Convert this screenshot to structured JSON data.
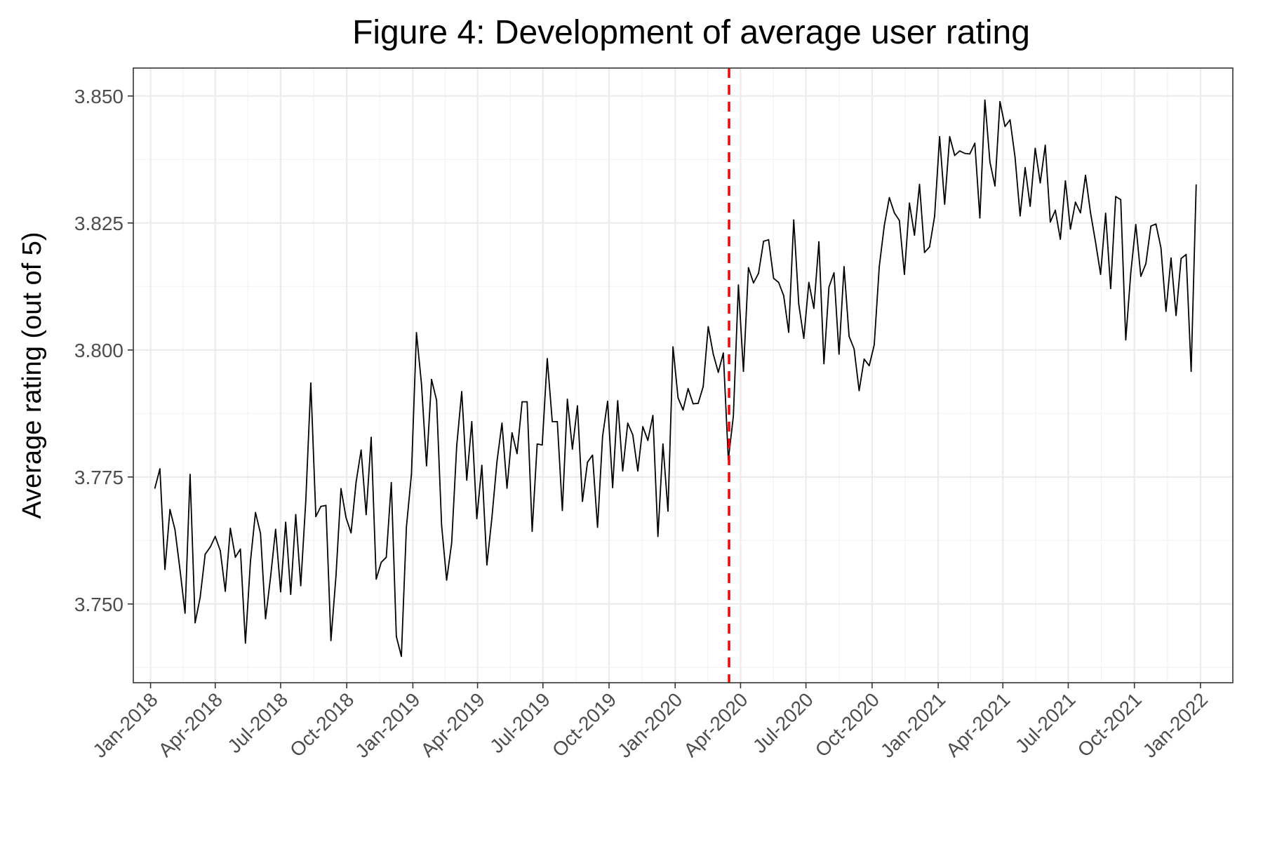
{
  "chart_data": {
    "type": "line",
    "title": "Figure 4: Development of average user rating",
    "xlabel": "",
    "ylabel": "Average rating (out of 5)",
    "x_axis": "date",
    "xlim": [
      "2017-12-08",
      "2022-02-15"
    ],
    "ylim": [
      3.7345,
      3.8555
    ],
    "x_ticks": [
      {
        "date": "2018-01-01",
        "label": "Jan-2018"
      },
      {
        "date": "2018-04-01",
        "label": "Apr-2018"
      },
      {
        "date": "2018-07-01",
        "label": "Jul-2018"
      },
      {
        "date": "2018-10-01",
        "label": "Oct-2018"
      },
      {
        "date": "2019-01-01",
        "label": "Jan-2019"
      },
      {
        "date": "2019-04-01",
        "label": "Apr-2019"
      },
      {
        "date": "2019-07-01",
        "label": "Jul-2019"
      },
      {
        "date": "2019-10-01",
        "label": "Oct-2019"
      },
      {
        "date": "2020-01-01",
        "label": "Jan-2020"
      },
      {
        "date": "2020-04-01",
        "label": "Apr-2020"
      },
      {
        "date": "2020-07-01",
        "label": "Jul-2020"
      },
      {
        "date": "2020-10-01",
        "label": "Oct-2020"
      },
      {
        "date": "2021-01-01",
        "label": "Jan-2021"
      },
      {
        "date": "2021-04-01",
        "label": "Apr-2021"
      },
      {
        "date": "2021-07-01",
        "label": "Jul-2021"
      },
      {
        "date": "2021-10-01",
        "label": "Oct-2021"
      },
      {
        "date": "2022-01-01",
        "label": "Jan-2022"
      }
    ],
    "y_ticks": [
      {
        "value": 3.75,
        "label": "3.750"
      },
      {
        "value": 3.775,
        "label": "3.775"
      },
      {
        "value": 3.8,
        "label": "3.800"
      },
      {
        "value": 3.825,
        "label": "3.825"
      },
      {
        "value": 3.85,
        "label": "3.850"
      }
    ],
    "grid": true,
    "vertical_reference_line": {
      "date": "2020-03-16",
      "color": "#ff0000",
      "style": "dashed"
    },
    "series": [
      {
        "color": "#000000",
        "points": [
          [
            "2018-01-07",
            3.7728
          ],
          [
            "2018-01-14",
            3.7766
          ],
          [
            "2018-01-21",
            3.7568
          ],
          [
            "2018-01-28",
            3.7686
          ],
          [
            "2018-02-04",
            3.7646
          ],
          [
            "2018-02-11",
            3.7567
          ],
          [
            "2018-02-18",
            3.7482
          ],
          [
            "2018-02-25",
            3.7755
          ],
          [
            "2018-03-04",
            3.7463
          ],
          [
            "2018-03-11",
            3.7513
          ],
          [
            "2018-03-18",
            3.7598
          ],
          [
            "2018-03-25",
            3.7612
          ],
          [
            "2018-04-01",
            3.7633
          ],
          [
            "2018-04-08",
            3.7605
          ],
          [
            "2018-04-15",
            3.7525
          ],
          [
            "2018-04-22",
            3.7649
          ],
          [
            "2018-04-29",
            3.7592
          ],
          [
            "2018-05-06",
            3.7608
          ],
          [
            "2018-05-13",
            3.7423
          ],
          [
            "2018-05-20",
            3.7584
          ],
          [
            "2018-05-27",
            3.768
          ],
          [
            "2018-06-03",
            3.7639
          ],
          [
            "2018-06-10",
            3.7471
          ],
          [
            "2018-06-17",
            3.7553
          ],
          [
            "2018-06-24",
            3.7647
          ],
          [
            "2018-07-01",
            3.7524
          ],
          [
            "2018-07-08",
            3.7661
          ],
          [
            "2018-07-15",
            3.7519
          ],
          [
            "2018-07-22",
            3.7676
          ],
          [
            "2018-07-29",
            3.7536
          ],
          [
            "2018-08-05",
            3.7703
          ],
          [
            "2018-08-12",
            3.7935
          ],
          [
            "2018-08-19",
            3.7672
          ],
          [
            "2018-08-26",
            3.7692
          ],
          [
            "2018-09-02",
            3.7694
          ],
          [
            "2018-09-09",
            3.7428
          ],
          [
            "2018-09-16",
            3.7555
          ],
          [
            "2018-09-23",
            3.7727
          ],
          [
            "2018-09-30",
            3.767
          ],
          [
            "2018-10-07",
            3.764
          ],
          [
            "2018-10-14",
            3.774
          ],
          [
            "2018-10-21",
            3.7803
          ],
          [
            "2018-10-28",
            3.7676
          ],
          [
            "2018-11-04",
            3.7828
          ],
          [
            "2018-11-11",
            3.7549
          ],
          [
            "2018-11-18",
            3.7582
          ],
          [
            "2018-11-25",
            3.7592
          ],
          [
            "2018-12-02",
            3.7739
          ],
          [
            "2018-12-09",
            3.7436
          ],
          [
            "2018-12-16",
            3.7397
          ],
          [
            "2018-12-23",
            3.7651
          ],
          [
            "2018-12-30",
            3.7755
          ],
          [
            "2019-01-06",
            3.8034
          ],
          [
            "2019-01-13",
            3.7933
          ],
          [
            "2019-01-20",
            3.7772
          ],
          [
            "2019-01-27",
            3.7942
          ],
          [
            "2019-02-03",
            3.7901
          ],
          [
            "2019-02-10",
            3.7655
          ],
          [
            "2019-02-17",
            3.7547
          ],
          [
            "2019-02-24",
            3.762
          ],
          [
            "2019-03-03",
            3.7811
          ],
          [
            "2019-03-10",
            3.7918
          ],
          [
            "2019-03-17",
            3.7744
          ],
          [
            "2019-03-24",
            3.7859
          ],
          [
            "2019-03-31",
            3.7668
          ],
          [
            "2019-04-07",
            3.7773
          ],
          [
            "2019-04-14",
            3.7577
          ],
          [
            "2019-04-21",
            3.767
          ],
          [
            "2019-04-28",
            3.778
          ],
          [
            "2019-05-05",
            3.7856
          ],
          [
            "2019-05-12",
            3.7728
          ],
          [
            "2019-05-19",
            3.7837
          ],
          [
            "2019-05-26",
            3.7796
          ],
          [
            "2019-06-02",
            3.7898
          ],
          [
            "2019-06-09",
            3.7898
          ],
          [
            "2019-06-16",
            3.7643
          ],
          [
            "2019-06-23",
            3.7815
          ],
          [
            "2019-06-30",
            3.7813
          ],
          [
            "2019-07-07",
            3.7983
          ],
          [
            "2019-07-14",
            3.7859
          ],
          [
            "2019-07-21",
            3.7859
          ],
          [
            "2019-07-28",
            3.7684
          ],
          [
            "2019-08-04",
            3.7903
          ],
          [
            "2019-08-11",
            3.7805
          ],
          [
            "2019-08-18",
            3.789
          ],
          [
            "2019-08-25",
            3.7702
          ],
          [
            "2019-09-01",
            3.7779
          ],
          [
            "2019-09-08",
            3.7793
          ],
          [
            "2019-09-15",
            3.7651
          ],
          [
            "2019-09-22",
            3.783
          ],
          [
            "2019-09-29",
            3.7899
          ],
          [
            "2019-10-06",
            3.7729
          ],
          [
            "2019-10-13",
            3.79
          ],
          [
            "2019-10-20",
            3.7762
          ],
          [
            "2019-10-27",
            3.7856
          ],
          [
            "2019-11-03",
            3.7833
          ],
          [
            "2019-11-10",
            3.7762
          ],
          [
            "2019-11-17",
            3.7849
          ],
          [
            "2019-11-24",
            3.7822
          ],
          [
            "2019-12-01",
            3.7871
          ],
          [
            "2019-12-08",
            3.7633
          ],
          [
            "2019-12-15",
            3.7815
          ],
          [
            "2019-12-22",
            3.7683
          ],
          [
            "2019-12-29",
            3.8006
          ],
          [
            "2020-01-05",
            3.7906
          ],
          [
            "2020-01-12",
            3.7882
          ],
          [
            "2020-01-19",
            3.7924
          ],
          [
            "2020-01-26",
            3.7894
          ],
          [
            "2020-02-02",
            3.7895
          ],
          [
            "2020-02-09",
            3.7928
          ],
          [
            "2020-02-16",
            3.8046
          ],
          [
            "2020-02-23",
            3.7992
          ],
          [
            "2020-03-01",
            3.7956
          ],
          [
            "2020-03-08",
            3.7994
          ],
          [
            "2020-03-15",
            3.7784
          ],
          [
            "2020-03-22",
            3.787
          ],
          [
            "2020-03-29",
            3.8128
          ],
          [
            "2020-04-05",
            3.7958
          ],
          [
            "2020-04-12",
            3.8162
          ],
          [
            "2020-04-19",
            3.8132
          ],
          [
            "2020-04-26",
            3.8151
          ],
          [
            "2020-05-03",
            3.8214
          ],
          [
            "2020-05-10",
            3.8217
          ],
          [
            "2020-05-17",
            3.8141
          ],
          [
            "2020-05-24",
            3.8133
          ],
          [
            "2020-05-31",
            3.8107
          ],
          [
            "2020-06-07",
            3.8035
          ],
          [
            "2020-06-14",
            3.8256
          ],
          [
            "2020-06-21",
            3.809
          ],
          [
            "2020-06-28",
            3.8023
          ],
          [
            "2020-07-05",
            3.8133
          ],
          [
            "2020-07-12",
            3.8082
          ],
          [
            "2020-07-19",
            3.8213
          ],
          [
            "2020-07-26",
            3.7973
          ],
          [
            "2020-08-02",
            3.8124
          ],
          [
            "2020-08-09",
            3.8152
          ],
          [
            "2020-08-16",
            3.7992
          ],
          [
            "2020-08-23",
            3.8164
          ],
          [
            "2020-08-30",
            3.8027
          ],
          [
            "2020-09-06",
            3.8002
          ],
          [
            "2020-09-13",
            3.792
          ],
          [
            "2020-09-20",
            3.7982
          ],
          [
            "2020-09-27",
            3.7969
          ],
          [
            "2020-10-04",
            3.801
          ],
          [
            "2020-10-11",
            3.8164
          ],
          [
            "2020-10-18",
            3.8245
          ],
          [
            "2020-10-25",
            3.83
          ],
          [
            "2020-11-01",
            3.827
          ],
          [
            "2020-11-08",
            3.8255
          ],
          [
            "2020-11-15",
            3.8149
          ],
          [
            "2020-11-22",
            3.8289
          ],
          [
            "2020-11-29",
            3.8226
          ],
          [
            "2020-12-06",
            3.8326
          ],
          [
            "2020-12-13",
            3.8192
          ],
          [
            "2020-12-20",
            3.8203
          ],
          [
            "2020-12-27",
            3.8263
          ],
          [
            "2021-01-03",
            3.842
          ],
          [
            "2021-01-10",
            3.8287
          ],
          [
            "2021-01-17",
            3.842
          ],
          [
            "2021-01-24",
            3.8383
          ],
          [
            "2021-01-31",
            3.8392
          ],
          [
            "2021-02-07",
            3.8387
          ],
          [
            "2021-02-14",
            3.8386
          ],
          [
            "2021-02-21",
            3.8407
          ],
          [
            "2021-02-28",
            3.826
          ],
          [
            "2021-03-07",
            3.8492
          ],
          [
            "2021-03-14",
            3.837
          ],
          [
            "2021-03-21",
            3.8323
          ],
          [
            "2021-03-28",
            3.8489
          ],
          [
            "2021-04-04",
            3.844
          ],
          [
            "2021-04-11",
            3.8453
          ],
          [
            "2021-04-18",
            3.8379
          ],
          [
            "2021-04-25",
            3.8264
          ],
          [
            "2021-05-02",
            3.8359
          ],
          [
            "2021-05-09",
            3.8283
          ],
          [
            "2021-05-16",
            3.8397
          ],
          [
            "2021-05-23",
            3.8329
          ],
          [
            "2021-05-30",
            3.8403
          ],
          [
            "2021-06-06",
            3.8252
          ],
          [
            "2021-06-13",
            3.8275
          ],
          [
            "2021-06-20",
            3.8218
          ],
          [
            "2021-06-27",
            3.8333
          ],
          [
            "2021-07-04",
            3.8238
          ],
          [
            "2021-07-11",
            3.8291
          ],
          [
            "2021-07-18",
            3.827
          ],
          [
            "2021-07-25",
            3.8344
          ],
          [
            "2021-08-01",
            3.827
          ],
          [
            "2021-08-08",
            3.8212
          ],
          [
            "2021-08-15",
            3.8149
          ],
          [
            "2021-08-22",
            3.8269
          ],
          [
            "2021-08-29",
            3.8121
          ],
          [
            "2021-09-05",
            3.8302
          ],
          [
            "2021-09-12",
            3.8296
          ],
          [
            "2021-09-19",
            3.802
          ],
          [
            "2021-09-26",
            3.8152
          ],
          [
            "2021-10-03",
            3.8247
          ],
          [
            "2021-10-10",
            3.8145
          ],
          [
            "2021-10-17",
            3.817
          ],
          [
            "2021-10-24",
            3.8244
          ],
          [
            "2021-10-31",
            3.8248
          ],
          [
            "2021-11-07",
            3.8201
          ],
          [
            "2021-11-14",
            3.8076
          ],
          [
            "2021-11-21",
            3.8181
          ],
          [
            "2021-11-28",
            3.8068
          ],
          [
            "2021-12-05",
            3.818
          ],
          [
            "2021-12-12",
            3.8188
          ],
          [
            "2021-12-19",
            3.7958
          ],
          [
            "2021-12-26",
            3.8325
          ]
        ]
      }
    ]
  }
}
